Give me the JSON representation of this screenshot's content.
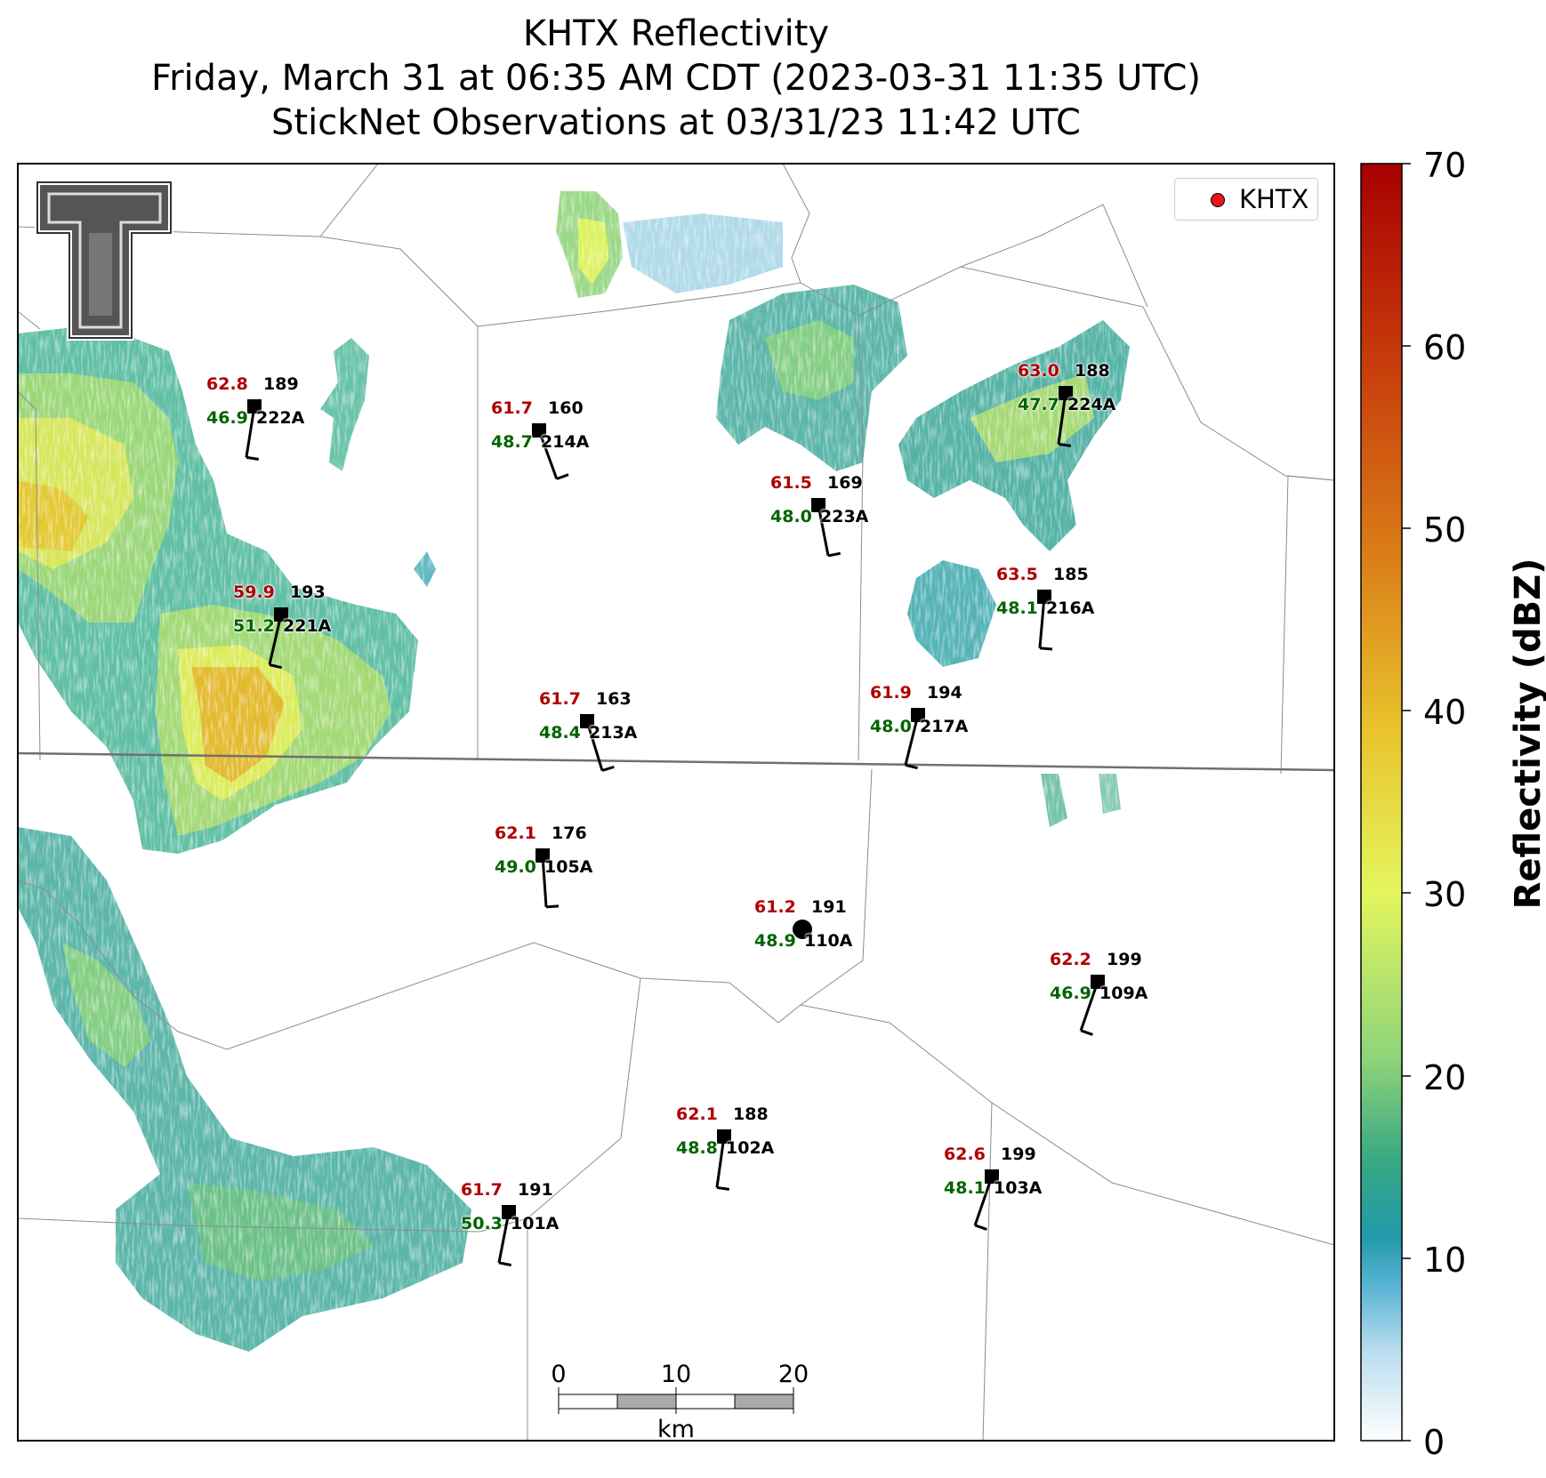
{
  "title": {
    "line1": "KHTX Reflectivity",
    "line2": "Friday, March 31 at 06:35 AM CDT (2023-03-31 11:35 UTC)",
    "line3": "StickNet Observations at 03/31/23 11:42 UTC"
  },
  "legend": {
    "label": "KHTX"
  },
  "colorbar": {
    "label": "Reflectivity (dBZ)",
    "ticks": [
      "0",
      "10",
      "20",
      "30",
      "40",
      "50",
      "60",
      "70"
    ],
    "range": [
      0,
      70
    ],
    "colors": [
      "#ffffff",
      "#b9ddee",
      "#5bb4d4",
      "#219aab",
      "#39a883",
      "#8fd47a",
      "#e4f55d",
      "#e8c22c",
      "#d97a17",
      "#c63a0b",
      "#a80000"
    ]
  },
  "scale_bar": {
    "ticks": [
      "0",
      "10",
      "20"
    ],
    "unit": "km"
  },
  "chart_data": {
    "type": "map",
    "radar": "KHTX",
    "field": "Reflectivity (dBZ)",
    "stations": [
      {
        "id": "222A",
        "temp": "62.8",
        "dew": "46.9",
        "dir": "189"
      },
      {
        "id": "214A",
        "temp": "61.7",
        "dew": "48.7",
        "dir": "160"
      },
      {
        "id": "223A",
        "temp": "61.5",
        "dew": "48.0",
        "dir": "169"
      },
      {
        "id": "224A",
        "temp": "63.0",
        "dew": "47.7",
        "dir": "188"
      },
      {
        "id": "221A",
        "temp": "59.9",
        "dew": "51.2",
        "dir": "193"
      },
      {
        "id": "216A",
        "temp": "63.5",
        "dew": "48.1",
        "dir": "185"
      },
      {
        "id": "213A",
        "temp": "61.7",
        "dew": "48.4",
        "dir": "163"
      },
      {
        "id": "217A",
        "temp": "61.9",
        "dew": "48.0",
        "dir": "194"
      },
      {
        "id": "105A",
        "temp": "62.1",
        "dew": "49.0",
        "dir": "176"
      },
      {
        "id": "110A",
        "temp": "61.2",
        "dew": "48.9",
        "dir": "191"
      },
      {
        "id": "109A",
        "temp": "62.2",
        "dew": "46.9",
        "dir": "199"
      },
      {
        "id": "102A",
        "temp": "62.1",
        "dew": "48.8",
        "dir": "188"
      },
      {
        "id": "103A",
        "temp": "62.6",
        "dew": "48.1",
        "dir": "199"
      },
      {
        "id": "101A",
        "temp": "61.7",
        "dew": "50.3",
        "dir": "191"
      }
    ]
  }
}
